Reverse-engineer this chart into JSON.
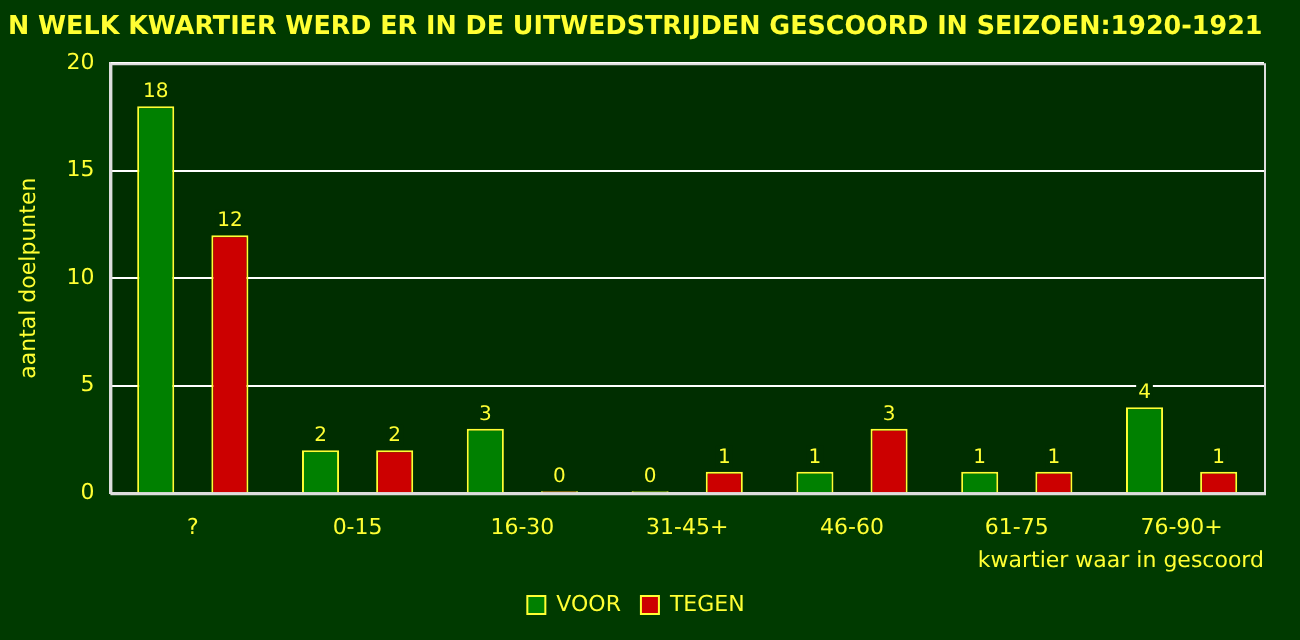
{
  "chart_data": {
    "type": "bar",
    "title": "N WELK KWARTIER WERD ER IN DE UITWEDSTRIJDEN GESCOORD IN SEIZOEN:1920-1921",
    "xlabel": "kwartier waar in gescoord",
    "ylabel": "aantal doelpunten",
    "categories": [
      "?",
      "0-15",
      "16-30",
      "31-45+",
      "46-60",
      "61-75",
      "76-90+"
    ],
    "series": [
      {
        "name": "VOOR",
        "color": "#008000",
        "values": [
          18,
          2,
          3,
          0,
          1,
          1,
          4
        ]
      },
      {
        "name": "TEGEN",
        "color": "#cc0000",
        "values": [
          12,
          2,
          0,
          1,
          3,
          1,
          1
        ]
      }
    ],
    "ylim": [
      0,
      20
    ],
    "yticks": [
      0,
      5,
      10,
      15,
      20
    ],
    "grid": "y",
    "legend": "bottom",
    "data_labels": true
  }
}
